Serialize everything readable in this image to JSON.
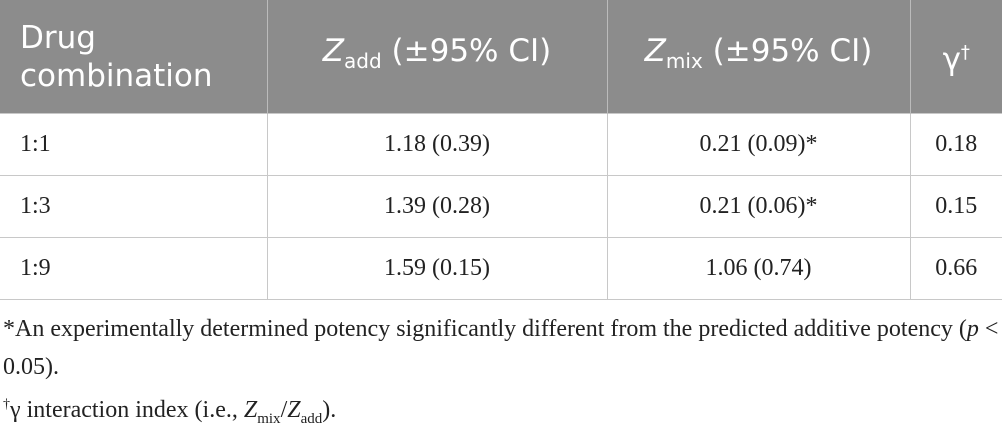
{
  "table": {
    "header": [
      "Drug combination",
      {
        "main": "Z",
        "sub": "add",
        "tail": " (±95% CI)"
      },
      {
        "main": "Z",
        "sub": "mix",
        "tail": " (±95% CI)"
      },
      {
        "main": "γ",
        "sup": "†"
      }
    ],
    "rows": [
      [
        "1:1",
        "1.18 (0.39)",
        "0.21 (0.09)*",
        "0.18"
      ],
      [
        "1:3",
        "1.39 (0.28)",
        "0.21 (0.06)*",
        "0.15"
      ],
      [
        "1:9",
        "1.59 (0.15)",
        "1.06 (0.74)",
        "0.66"
      ]
    ]
  },
  "footnotes": [
    {
      "text": "*An experimentally determined potency significantly different from the predicted additive potency (",
      "italic": "p",
      "tail": " < 0.05)."
    },
    {
      "sup": "†",
      "text": "γ interaction index (i.e., ",
      "z1": "Z",
      "sub1": "mix",
      "slash": "/",
      "z2": "Z",
      "sub2": "add",
      "tail": ")."
    }
  ]
}
